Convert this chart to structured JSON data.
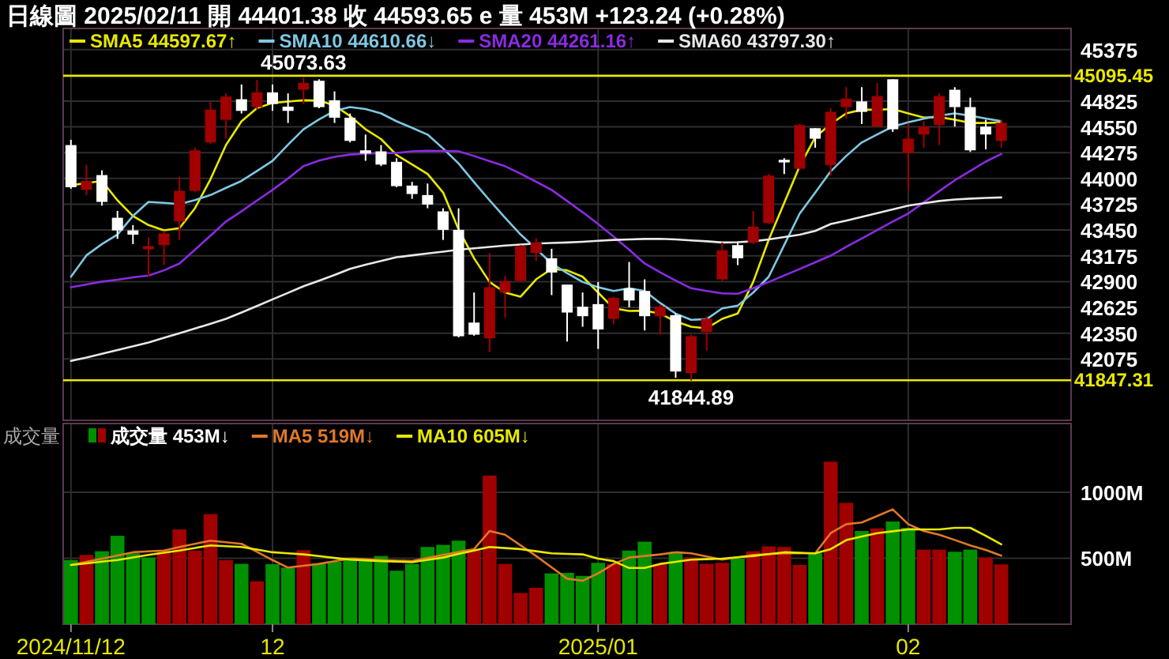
{
  "chart_data": [
    {
      "type": "candlestick",
      "title": "日線圖 2025/02/11 開 44401.38 收 44593.65 e 量 453M +123.24 (+0.28%)",
      "categories": [
        "2024/11/12",
        null,
        null,
        null,
        null,
        null,
        null,
        null,
        null,
        null,
        null,
        null,
        null,
        "12",
        null,
        null,
        null,
        null,
        null,
        null,
        null,
        null,
        null,
        null,
        null,
        null,
        null,
        null,
        null,
        null,
        null,
        null,
        null,
        null,
        "2025/01",
        null,
        null,
        null,
        null,
        null,
        null,
        null,
        null,
        null,
        null,
        null,
        null,
        null,
        null,
        null,
        null,
        null,
        null,
        null,
        "02",
        null,
        null,
        null,
        null,
        null,
        null
      ],
      "ohlc": [
        [
          44356,
          44412,
          43890,
          43907
        ],
        [
          43879,
          44143,
          43823,
          43974
        ],
        [
          44036,
          44087,
          43710,
          43750
        ],
        [
          43581,
          43654,
          43356,
          43446
        ],
        [
          43446,
          43503,
          43300,
          43401
        ],
        [
          43244,
          43373,
          42952,
          43278
        ],
        [
          43289,
          43441,
          43076,
          43413
        ],
        [
          43542,
          44019,
          43345,
          43868
        ],
        [
          43868,
          44328,
          43851,
          44300
        ],
        [
          44384,
          44817,
          44368,
          44733
        ],
        [
          44626,
          44907,
          44424,
          44873
        ],
        [
          44845,
          45002,
          44693,
          44721
        ],
        [
          44761,
          45050,
          44738,
          44918
        ],
        [
          44918,
          45002,
          44721,
          44794
        ],
        [
          44766,
          44907,
          44592,
          44721
        ],
        [
          44946,
          45073.63,
          44794,
          45019
        ],
        [
          45042,
          45058,
          44749,
          44761
        ],
        [
          44834,
          44929,
          44592,
          44648
        ],
        [
          44648,
          44693,
          44384,
          44401
        ],
        [
          44300,
          44469,
          44188,
          44266
        ],
        [
          44289,
          44356,
          44132,
          44148
        ],
        [
          44177,
          44216,
          43907,
          43918
        ],
        [
          43924,
          43963,
          43783,
          43834
        ],
        [
          43823,
          43946,
          43682,
          43722
        ],
        [
          43649,
          43682,
          43345,
          43452
        ],
        [
          43452,
          43682,
          42306,
          42317
        ],
        [
          42463,
          42784,
          42323,
          42334
        ],
        [
          42295,
          43205,
          42149,
          42840
        ],
        [
          42784,
          42963,
          42514,
          42907
        ],
        [
          42907,
          43289,
          42896,
          43278
        ],
        [
          43205,
          43362,
          43121,
          43317
        ],
        [
          43149,
          43250,
          42756,
          42997
        ],
        [
          42868,
          42868,
          42261,
          42570
        ],
        [
          42632,
          42784,
          42418,
          42531
        ],
        [
          42660,
          42896,
          42183,
          42390
        ],
        [
          42503,
          42739,
          42446,
          42727
        ],
        [
          42828,
          43109,
          42626,
          42699
        ],
        [
          42800,
          42924,
          42379,
          42531
        ],
        [
          42531,
          42660,
          42334,
          42632
        ],
        [
          42542,
          42559,
          41874,
          41941
        ],
        [
          41924,
          42334,
          41844.89,
          42317
        ],
        [
          42362,
          42531,
          42166,
          42503
        ],
        [
          42924,
          43317,
          42907,
          43233
        ],
        [
          43289,
          43317,
          43076,
          43149
        ],
        [
          43317,
          43654,
          43300,
          43486
        ],
        [
          43525,
          44047,
          43514,
          44031
        ],
        [
          44199,
          44216,
          44047,
          44171
        ],
        [
          44104,
          44581,
          44093,
          44570
        ],
        [
          44536,
          44536,
          44328,
          44424
        ],
        [
          44143,
          44749,
          44031,
          44710
        ],
        [
          44761,
          44974,
          44637,
          44851
        ],
        [
          44822,
          44974,
          44581,
          44710
        ],
        [
          44553,
          45019,
          44553,
          44879
        ],
        [
          45058,
          45058,
          44497,
          44525
        ],
        [
          44272,
          44592,
          43879,
          44424
        ],
        [
          44469,
          44609,
          44328,
          44553
        ],
        [
          44570,
          44907,
          44356,
          44879
        ],
        [
          44946,
          44974,
          44553,
          44761
        ],
        [
          44761,
          44862,
          44283,
          44300
        ],
        [
          44553,
          44626,
          44311,
          44469
        ],
        [
          44401.38,
          44626,
          44328,
          44593.65
        ]
      ],
      "colors": [
        "#ffffff",
        "#a00000",
        "#ffffff",
        "#ffffff",
        "#ffffff",
        "#a00000",
        "#a00000",
        "#a00000",
        "#a00000",
        "#a00000",
        "#a00000",
        "#ffffff",
        "#a00000",
        "#ffffff",
        "#ffffff",
        "#a00000",
        "#ffffff",
        "#ffffff",
        "#ffffff",
        "#ffffff",
        "#ffffff",
        "#ffffff",
        "#ffffff",
        "#ffffff",
        "#ffffff",
        "#ffffff",
        "#ffffff",
        "#a00000",
        "#a00000",
        "#a00000",
        "#a00000",
        "#ffffff",
        "#ffffff",
        "#ffffff",
        "#ffffff",
        "#a00000",
        "#ffffff",
        "#ffffff",
        "#a00000",
        "#ffffff",
        "#a00000",
        "#a00000",
        "#a00000",
        "#ffffff",
        "#a00000",
        "#a00000",
        "#ffffff",
        "#a00000",
        "#ffffff",
        "#a00000",
        "#a00000",
        "#ffffff",
        "#a00000",
        "#ffffff",
        "#a00000",
        "#a00000",
        "#a00000",
        "#ffffff",
        "#ffffff",
        "#ffffff",
        "#a00000"
      ],
      "series": [
        {
          "name": "SMA5 44597.67↑",
          "type": "line",
          "color": "#e8e800",
          "values": [
            43928,
            43950,
            43974,
            43767,
            43599,
            43503,
            43447,
            43470,
            43683,
            43992,
            44357,
            44610,
            44750,
            44805,
            44820,
            44834,
            44830,
            44778,
            44665,
            44525,
            44420,
            44250,
            44150,
            44048,
            43851,
            43457,
            43149,
            42896,
            42783,
            42739,
            42924,
            43036,
            43020,
            42952,
            42783,
            42615,
            42587,
            42590,
            42559,
            42475,
            42419,
            42402,
            42503,
            42559,
            42896,
            43346,
            43740,
            44131,
            44441,
            44581,
            44694,
            44733,
            44733,
            44740,
            44694,
            44649,
            44655,
            44627,
            44592,
            44592,
            44597.67
          ]
        },
        {
          "name": "SMA10 44610.66↓",
          "type": "line",
          "color": "#7ec8e3",
          "values": [
            42952,
            43180,
            43300,
            43402,
            43600,
            43750,
            43740,
            43727,
            43770,
            43823,
            43900,
            43974,
            44080,
            44188,
            44360,
            44525,
            44630,
            44721,
            44761,
            44740,
            44694,
            44610,
            44540,
            44468,
            44320,
            44160,
            43960,
            43767,
            43580,
            43402,
            43250,
            43093,
            42990,
            42896,
            42840,
            42800,
            42829,
            42800,
            42672,
            42559,
            42492,
            42500,
            42615,
            42643,
            42783,
            42952,
            43290,
            43626,
            43850,
            44076,
            44240,
            44384,
            44470,
            44553,
            44600,
            44637,
            44670,
            44694,
            44670,
            44640,
            44610.66
          ]
        },
        {
          "name": "SMA20 44261.16↑",
          "type": "line",
          "color": "#8a2be2",
          "values": [
            42840,
            42870,
            42900,
            42920,
            42945,
            42964,
            43020,
            43093,
            43240,
            43390,
            43541,
            43650,
            43765,
            43878,
            44000,
            44131,
            44190,
            44230,
            44255,
            44265,
            44270,
            44272,
            44290,
            44295,
            44293,
            44290,
            44240,
            44185,
            44131,
            44050,
            43965,
            43878,
            43760,
            43640,
            43514,
            43380,
            43240,
            43093,
            43000,
            42910,
            42829,
            42800,
            42775,
            42770,
            42830,
            42896,
            42965,
            43035,
            43105,
            43177,
            43270,
            43360,
            43450,
            43540,
            43626,
            43745,
            43865,
            43980,
            44080,
            44180,
            44261.16
          ]
        },
        {
          "name": "SMA60 43797.30↑",
          "type": "line",
          "color": "#e8e8e8",
          "values": [
            42054,
            42090,
            42130,
            42170,
            42210,
            42251,
            42300,
            42350,
            42400,
            42450,
            42503,
            42570,
            42640,
            42710,
            42780,
            42851,
            42910,
            42970,
            43036,
            43080,
            43120,
            43160,
            43180,
            43200,
            43220,
            43240,
            43255,
            43270,
            43285,
            43295,
            43305,
            43312,
            43317,
            43325,
            43335,
            43345,
            43350,
            43355,
            43356,
            43350,
            43340,
            43330,
            43317,
            43320,
            43330,
            43350,
            43375,
            43400,
            43440,
            43514,
            43550,
            43590,
            43630,
            43670,
            43710,
            43735,
            43760,
            43775,
            43785,
            43792,
            43797.3
          ]
        }
      ],
      "ylim": [
        41420,
        45600
      ],
      "yticks": [
        45375,
        44825,
        44550,
        44275,
        44000,
        43725,
        43450,
        43175,
        42900,
        42625,
        42350,
        42075
      ],
      "ref_lines": [
        {
          "axis": "y",
          "value": 45095.45,
          "label": "45095.45",
          "color": "#e8e800"
        },
        {
          "axis": "y",
          "value": 41847.31,
          "label": "41847.31",
          "color": "#e8e800"
        }
      ],
      "annotations": [
        {
          "text": "45073.63",
          "y": 45073.63
        },
        {
          "text": "41844.89",
          "y": 41844.89
        }
      ],
      "grid": true,
      "legend": "top left",
      "tick_labels": "y"
    },
    {
      "type": "bar",
      "title": "成交量",
      "categories": [
        "2024/11/12",
        null,
        null,
        null,
        null,
        null,
        null,
        null,
        null,
        null,
        null,
        null,
        null,
        "12",
        null,
        null,
        null,
        null,
        null,
        null,
        null,
        null,
        null,
        null,
        null,
        null,
        null,
        null,
        null,
        null,
        null,
        null,
        null,
        null,
        "2025/01",
        null,
        null,
        null,
        null,
        null,
        null,
        null,
        null,
        null,
        null,
        null,
        null,
        null,
        null,
        null,
        null,
        null,
        null,
        null,
        "02",
        null,
        null,
        null,
        null,
        null,
        null
      ],
      "series": [
        {
          "name": "成交量 453M↓",
          "type": "bar",
          "colors": [
            "#009000",
            "#a00000",
            "#009000",
            "#009000",
            "#009000",
            "#009000",
            "#a00000",
            "#a00000",
            "#a00000",
            "#a00000",
            "#a00000",
            "#009000",
            "#a00000",
            "#009000",
            "#009000",
            "#a00000",
            "#009000",
            "#009000",
            "#009000",
            "#009000",
            "#009000",
            "#009000",
            "#009000",
            "#009000",
            "#009000",
            "#009000",
            "#a00000",
            "#a00000",
            "#a00000",
            "#a00000",
            "#a00000",
            "#009000",
            "#009000",
            "#009000",
            "#009000",
            "#a00000",
            "#009000",
            "#009000",
            "#a00000",
            "#009000",
            "#a00000",
            "#a00000",
            "#a00000",
            "#009000",
            "#a00000",
            "#a00000",
            "#a00000",
            "#a00000",
            "#009000",
            "#a00000",
            "#a00000",
            "#009000",
            "#a00000",
            "#009000",
            "#009000",
            "#a00000",
            "#a00000",
            "#009000",
            "#009000",
            "#a00000",
            "#a00000"
          ],
          "values": [
            486,
            525,
            553,
            670,
            537,
            505,
            558,
            718,
            558,
            834,
            486,
            457,
            325,
            455,
            429,
            561,
            457,
            473,
            505,
            497,
            517,
            405,
            457,
            585,
            601,
            633,
            558,
            1126,
            457,
            237,
            276,
            385,
            389,
            366,
            465,
            457,
            558,
            625,
            457,
            549,
            505,
            457,
            465,
            497,
            553,
            589,
            585,
            449,
            537,
            1231,
            919,
            706,
            726,
            778,
            730,
            565,
            565,
            549,
            565,
            505,
            453
          ]
        },
        {
          "name": "MA5 519M↓",
          "type": "line",
          "color": "#e07828",
          "values": [
            449,
            473,
            497,
            521,
            545,
            552,
            558,
            585,
            609,
            633,
            621,
            609,
            548,
            486,
            429,
            443,
            457,
            477,
            497,
            492,
            486,
            482,
            478,
            502,
            525,
            547,
            569,
            706,
            678,
            598,
            517,
            431,
            345,
            329,
            385,
            457,
            505,
            517,
            529,
            545,
            537,
            513,
            489,
            507,
            525,
            531,
            537,
            537,
            537,
            690,
            758,
            770,
            820,
            870,
            758,
            706,
            678,
            638,
            597,
            563,
            519
          ]
        },
        {
          "name": "MA10 605M↓",
          "type": "line",
          "color": "#e8e800",
          "values": [
            449,
            461,
            474,
            486,
            506,
            525,
            542,
            558,
            578,
            597,
            591,
            585,
            565,
            545,
            537,
            529,
            516,
            502,
            489,
            484,
            478,
            474,
            470,
            488,
            505,
            532,
            558,
            585,
            577,
            569,
            553,
            537,
            533,
            529,
            497,
            478,
            426,
            426,
            457,
            473,
            489,
            493,
            497,
            507,
            517,
            531,
            545,
            541,
            537,
            569,
            637,
            664,
            690,
            704,
            718,
            718,
            718,
            730,
            730,
            670,
            605
          ]
        }
      ],
      "ylim": [
        0,
        1520
      ],
      "yticks": [
        {
          "value": 500,
          "label": "500M"
        },
        {
          "value": 1000,
          "label": "1000M"
        }
      ],
      "grid": true,
      "legend": "top left"
    }
  ]
}
